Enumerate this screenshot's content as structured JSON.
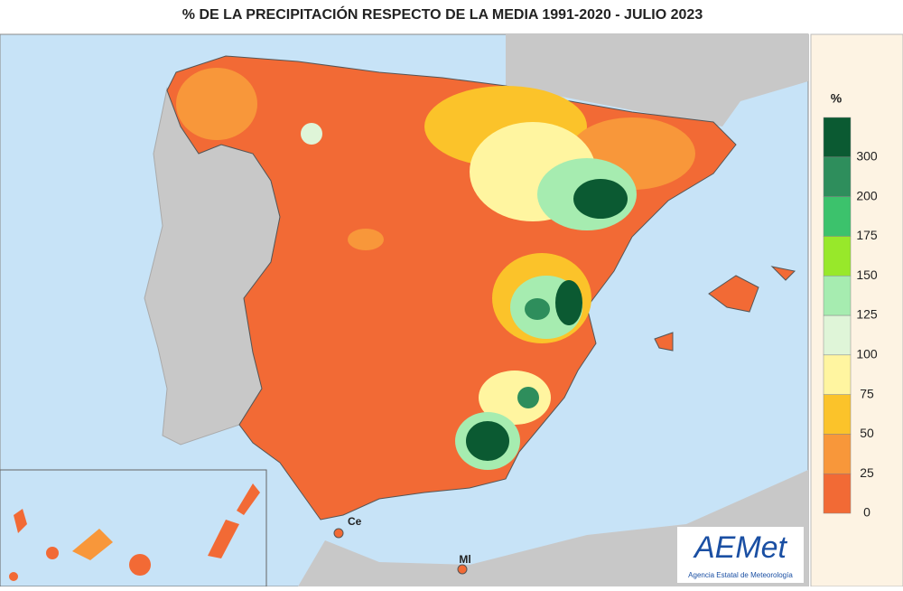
{
  "title": "% DE LA PRECIPITACIÓN RESPECTO DE LA MEDIA 1991-2020 - JULIO 2023",
  "legend": {
    "unit": "%",
    "ticks": [
      0,
      25,
      50,
      75,
      100,
      125,
      150,
      175,
      200,
      300
    ],
    "colors": [
      "#f26a35",
      "#f8973a",
      "#fbc32a",
      "#fff5a0",
      "#dff5d8",
      "#a6ecb0",
      "#98e82a",
      "#3cc26c",
      "#2e8e5c",
      "#0b5a32"
    ]
  },
  "places": [
    {
      "label": "Ce"
    },
    {
      "label": "Ml"
    }
  ],
  "logo": {
    "name": "AEMet",
    "caption": "Agencia Estatal de Meteorología"
  }
}
